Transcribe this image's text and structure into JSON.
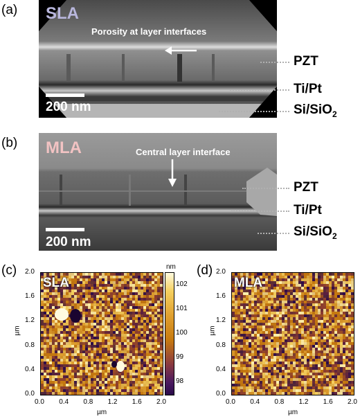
{
  "figure": {
    "panels": {
      "a": {
        "letter": "(a)",
        "tag": "SLA",
        "annotation": "Porosity at layer interfaces",
        "scale_bar": "200 nm",
        "layers": [
          "PZT",
          "Ti/Pt",
          "Si/SiO"
        ],
        "sub2": "2"
      },
      "b": {
        "letter": "(b)",
        "tag": "MLA",
        "annotation": "Central layer interface",
        "scale_bar": "200 nm",
        "layers": [
          "PZT",
          "Ti/Pt",
          "Si/SiO"
        ],
        "sub2": "2"
      },
      "c": {
        "letter": "(c)",
        "tag": "SLA"
      },
      "d": {
        "letter": "(d)",
        "tag": "MLA"
      }
    },
    "afm": {
      "axis_unit": "µm",
      "x_ticks": [
        "0.0",
        "0.4",
        "0.8",
        "1.2",
        "1.6",
        "2.0"
      ],
      "y_ticks": [
        "0.0",
        "0.4",
        "0.8",
        "1.2",
        "1.6",
        "2.0"
      ],
      "colorbar_unit": "nm",
      "colorbar_ticks": [
        "102",
        "101",
        "100",
        "99",
        "98"
      ],
      "colors": {
        "high": "#fffbe0",
        "mid": "#c77a10",
        "low": "#2a0a4a"
      }
    }
  }
}
